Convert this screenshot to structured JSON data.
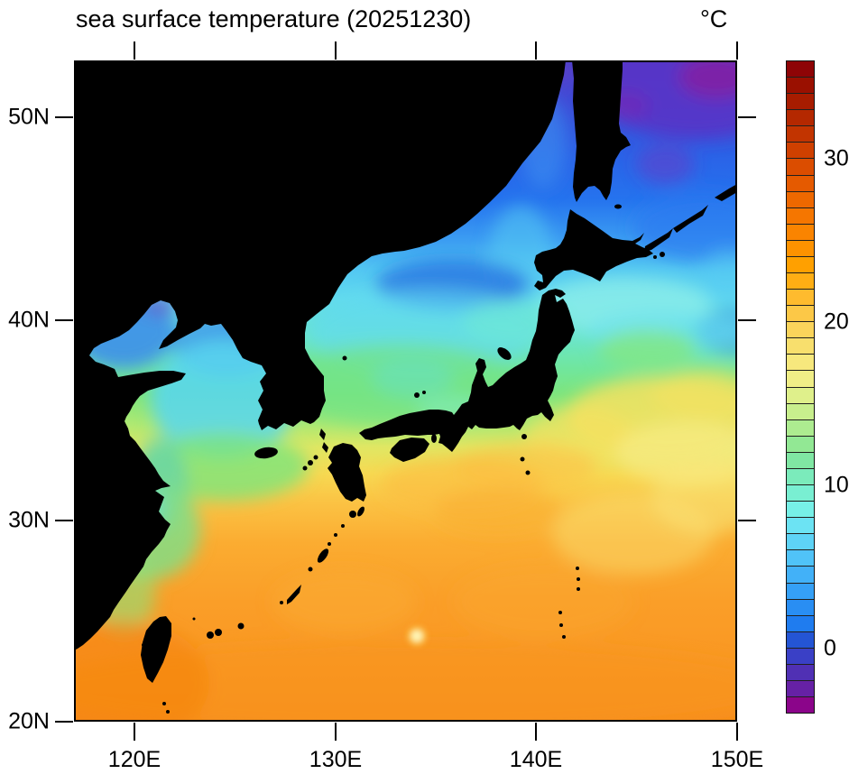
{
  "title": "sea surface temperature (20251230)",
  "units_label": "°C",
  "map": {
    "x_axis": {
      "ticks": [
        "120E",
        "130E",
        "140E",
        "150E"
      ]
    },
    "y_axis": {
      "ticks": [
        "50N",
        "40N",
        "30N",
        "20N"
      ]
    }
  },
  "colorbar": {
    "unit": "°C",
    "min": -4,
    "max": 36,
    "step": 1,
    "box_count": 40,
    "labels": [
      {
        "text": "30"
      },
      {
        "text": "20"
      },
      {
        "text": "10"
      },
      {
        "text": "0"
      }
    ],
    "colors_top_to_bottom": [
      "#8E0406",
      "#9A1000",
      "#A71C00",
      "#B42800",
      "#C23400",
      "#CF4000",
      "#DB4D00",
      "#E55A00",
      "#EE6800",
      "#F57600",
      "#FA8400",
      "#FD9200",
      "#FFA000",
      "#FFAE14",
      "#FEBB2E",
      "#FCC847",
      "#FAD45B",
      "#F8DF6D",
      "#F7E87D",
      "#F0EE87",
      "#DFF08B",
      "#C8EF8D",
      "#ADEC90",
      "#92E894",
      "#80E7A3",
      "#7BEBBB",
      "#79EFD2",
      "#77F0E7",
      "#6CE3F3",
      "#5ED3F6",
      "#50C3F8",
      "#42B1F8",
      "#35A0F6",
      "#298EF3",
      "#1F7CEF",
      "#2455D4",
      "#3A40C6",
      "#5030B4",
      "#6621A5",
      "#8B058A"
    ]
  },
  "chart_data": {
    "type": "heatmap",
    "title": "sea surface temperature (20251230)",
    "variable": "sea surface temperature",
    "date": "20251230",
    "units": "°C",
    "projection": "cylindrical equidistant",
    "lon_range_deg_east": [
      117,
      150
    ],
    "lat_range_deg_north": [
      20,
      52.9
    ],
    "x_tick_labels": [
      "120E",
      "130E",
      "140E",
      "150E"
    ],
    "y_tick_labels": [
      "50N",
      "40N",
      "30N",
      "20N"
    ],
    "colorbar_range_c": [
      -4,
      36
    ],
    "colorbar_tick_labels": [
      30,
      20,
      10,
      0
    ],
    "land_color": "#000000",
    "grid_estimate": {
      "lats_deg_north": [
        51,
        48,
        45,
        42,
        39,
        36,
        33,
        30,
        27,
        24,
        21
      ],
      "lons_deg_east": [
        118.5,
        123,
        127.5,
        132,
        136.5,
        141,
        145.5,
        150
      ],
      "sst_c": [
        [
          null,
          null,
          null,
          null,
          null,
          1,
          -1,
          0
        ],
        [
          null,
          null,
          null,
          null,
          null,
          2,
          0,
          1
        ],
        [
          null,
          null,
          null,
          null,
          null,
          5,
          3,
          3
        ],
        [
          null,
          null,
          null,
          6,
          8,
          9,
          7,
          6
        ],
        [
          3,
          6,
          null,
          11,
          12,
          null,
          10,
          9
        ],
        [
          null,
          9,
          null,
          14,
          null,
          15,
          13,
          12
        ],
        [
          null,
          14,
          16,
          17,
          19,
          19,
          18,
          17
        ],
        [
          null,
          18,
          20,
          21,
          21,
          21,
          21,
          20
        ],
        [
          21,
          22,
          23,
          23,
          23,
          22,
          22,
          22
        ],
        [
          23,
          24,
          25,
          24,
          24,
          24,
          24,
          23
        ],
        [
          25,
          25,
          26,
          25,
          25,
          25,
          25,
          24
        ]
      ]
    },
    "features": [
      "sharp Kuroshio front near 36-37N east of Honshu separating yellow (18-20C) from cyan-green (10-14C) water",
      "cold purple water (around -1 to 1C) in the Sea of Okhotsk at the top right",
      "cold blue pool in the Bohai Sea and northern Yellow Sea (2-6C)",
      "warm orange subtropical water (22-27C) south of about 31N",
      "small pale warm eddy spot near 137.4E 24.2N"
    ]
  }
}
